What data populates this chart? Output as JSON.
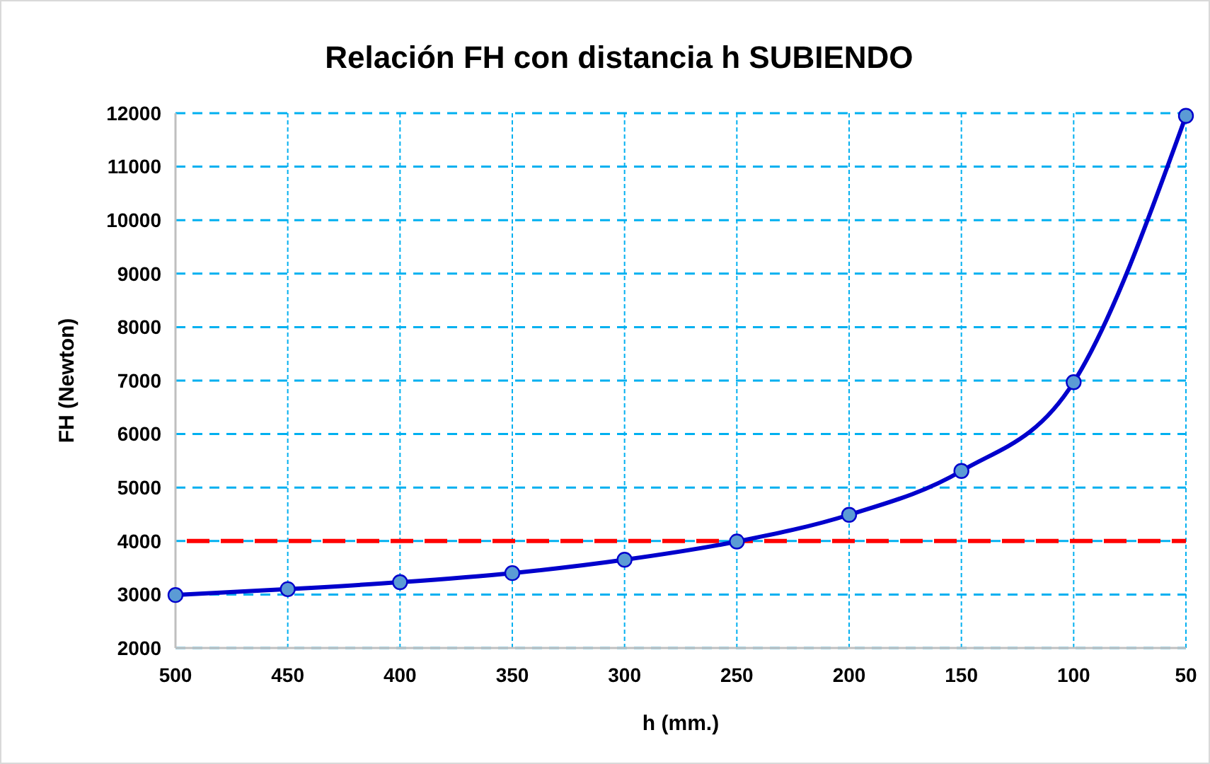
{
  "chart_data": {
    "type": "line",
    "title": "Relación FH con distancia h SUBIENDO",
    "xlabel": "h (mm.)",
    "ylabel": "FH (Newton)",
    "x": [
      500,
      450,
      400,
      350,
      300,
      250,
      200,
      150,
      100,
      50
    ],
    "series": [
      {
        "color": "#0000cc",
        "values": [
          2990,
          3100,
          3230,
          3400,
          3650,
          3990,
          4490,
          5310,
          6970,
          11950
        ]
      }
    ],
    "xlim": [
      500,
      50
    ],
    "xticks": [
      500,
      450,
      400,
      350,
      300,
      250,
      200,
      150,
      100,
      50
    ],
    "ylim": [
      2000,
      12000
    ],
    "yticks": [
      2000,
      3000,
      4000,
      5000,
      6000,
      7000,
      8000,
      9000,
      10000,
      11000,
      12000
    ],
    "grid": true,
    "marker": "circle",
    "line_style": "solid",
    "ref_lines": [
      {
        "axis": "y",
        "value": 4000,
        "color": "#ff0000",
        "line_style": "dashed"
      }
    ]
  }
}
